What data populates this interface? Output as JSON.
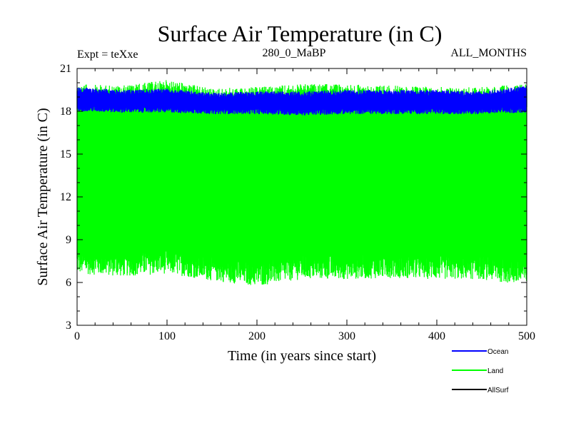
{
  "chart_data": {
    "type": "line",
    "title": "Surface Air Temperature (in C)",
    "subtitle_left": "Expt = teXxe",
    "subtitle_center": "280_0_MaBP",
    "subtitle_right": "ALL_MONTHS",
    "xlabel": "Time (in years since start)",
    "ylabel": "Surface Air Temperature (in C)",
    "xlim": [
      0,
      500
    ],
    "ylim": [
      3,
      21
    ],
    "x_ticks": [
      0,
      100,
      200,
      300,
      400,
      500
    ],
    "y_ticks": [
      3,
      6,
      9,
      12,
      15,
      18,
      21
    ],
    "x_tick_labels": [
      "0",
      "100",
      "200",
      "300",
      "400",
      "500"
    ],
    "y_tick_labels": [
      "3",
      "6",
      "9",
      "12",
      "15",
      "18",
      "21"
    ],
    "series": [
      {
        "name": "Ocean",
        "color": "#0000ff",
        "x": [
          0,
          50,
          100,
          150,
          200,
          250,
          300,
          350,
          400,
          450,
          500
        ],
        "min": [
          18.0,
          17.9,
          17.9,
          17.8,
          17.8,
          17.7,
          17.8,
          17.8,
          17.8,
          17.8,
          17.9
        ],
        "max": [
          19.7,
          19.5,
          19.6,
          19.3,
          19.4,
          19.4,
          19.5,
          19.5,
          19.5,
          19.4,
          19.8
        ]
      },
      {
        "name": "Land",
        "color": "#00ff00",
        "x": [
          0,
          50,
          100,
          150,
          200,
          250,
          300,
          350,
          400,
          450,
          500
        ],
        "min": [
          6.2,
          6.0,
          6.2,
          5.7,
          5.3,
          5.8,
          5.8,
          5.9,
          5.8,
          5.8,
          5.3
        ],
        "max": [
          19.9,
          19.8,
          20.2,
          19.6,
          19.7,
          19.9,
          19.9,
          19.8,
          19.7,
          19.7,
          19.9
        ]
      },
      {
        "name": "AllSurf",
        "color": "#000000",
        "x": [],
        "values": []
      }
    ],
    "legend": [
      {
        "label": "Ocean",
        "color": "#0000ff"
      },
      {
        "label": "Land",
        "color": "#00ff00"
      },
      {
        "label": "AllSurf",
        "color": "#000000"
      }
    ]
  }
}
